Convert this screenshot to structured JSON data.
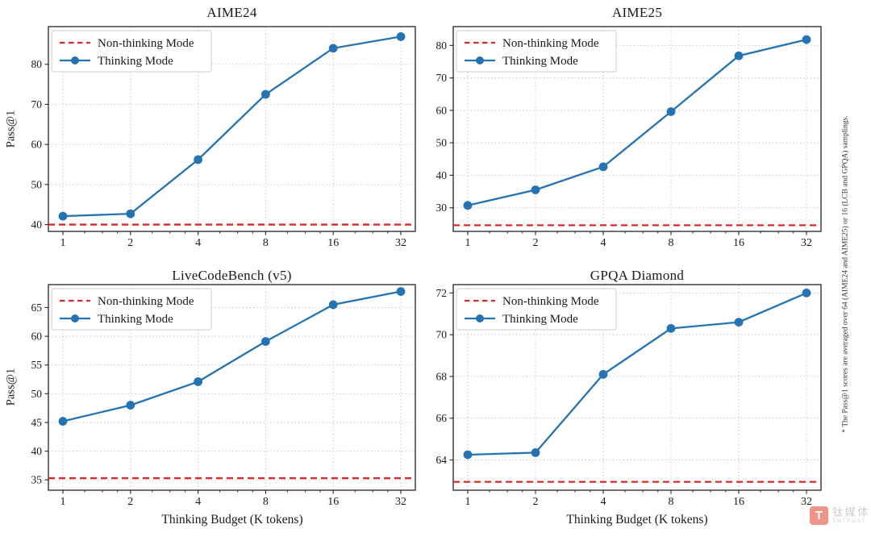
{
  "figure": {
    "background": "#ffffff",
    "footnote": "* The Pass@1 scores are averaged over 64 (AIME24 and AIME25) or 16 (LCB and GPQA) samplings."
  },
  "watermark": {
    "logo_letter": "T",
    "name_cn": "钛媒体",
    "name_en": "TMTPOST",
    "logo_color": "#f0948a",
    "text_color": "#cfcfcf"
  },
  "colors": {
    "thinking_line": "#2573b3",
    "non_thinking_line": "#d62b2e",
    "grid": "#c9c9c9",
    "spine": "#333333",
    "text": "#1a1a1a",
    "legend_border": "#cccccc",
    "legend_bg": "#ffffff"
  },
  "chart_data": [
    {
      "type": "line",
      "title": "AIME24",
      "ylabel": "Pass@1",
      "xlabel": "",
      "x_scale": "log2",
      "x": [
        1,
        2,
        4,
        8,
        16,
        32
      ],
      "x_tick_labels": [
        "1",
        "2",
        "4",
        "8",
        "16",
        "32"
      ],
      "y_ticks": [
        40,
        50,
        60,
        70,
        80
      ],
      "ylim": [
        38.3,
        89.4
      ],
      "grid": true,
      "legend_position": "upper-left",
      "series": [
        {
          "name": "Non-thinking Mode",
          "style": "dashed-hline",
          "value": 40.0
        },
        {
          "name": "Thinking Mode",
          "style": "line-marker",
          "values": [
            42.1,
            42.7,
            56.2,
            72.5,
            84.0,
            86.9
          ]
        }
      ]
    },
    {
      "type": "line",
      "title": "AIME25",
      "ylabel": "",
      "xlabel": "",
      "x_scale": "log2",
      "x": [
        1,
        2,
        4,
        8,
        16,
        32
      ],
      "x_tick_labels": [
        "1",
        "2",
        "4",
        "8",
        "16",
        "32"
      ],
      "y_ticks": [
        30,
        40,
        50,
        60,
        70,
        80
      ],
      "ylim": [
        22.7,
        85.8
      ],
      "grid": true,
      "legend_position": "upper-left",
      "series": [
        {
          "name": "Non-thinking Mode",
          "style": "dashed-hline",
          "value": 24.6
        },
        {
          "name": "Thinking Mode",
          "style": "line-marker",
          "values": [
            30.7,
            35.5,
            42.6,
            59.6,
            76.8,
            81.8
          ]
        }
      ]
    },
    {
      "type": "line",
      "title": "LiveCodeBench (v5)",
      "ylabel": "Pass@1",
      "xlabel": "Thinking Budget (K tokens)",
      "x_scale": "log2",
      "x": [
        1,
        2,
        4,
        8,
        16,
        32
      ],
      "x_tick_labels": [
        "1",
        "2",
        "4",
        "8",
        "16",
        "32"
      ],
      "y_ticks": [
        35,
        40,
        45,
        50,
        55,
        60,
        65
      ],
      "ylim": [
        33.2,
        69.0
      ],
      "grid": true,
      "legend_position": "upper-left",
      "series": [
        {
          "name": "Non-thinking Mode",
          "style": "dashed-hline",
          "value": 35.3
        },
        {
          "name": "Thinking Mode",
          "style": "line-marker",
          "values": [
            45.2,
            48.0,
            52.1,
            59.1,
            65.5,
            67.8
          ]
        }
      ]
    },
    {
      "type": "line",
      "title": "GPQA Diamond",
      "ylabel": "",
      "xlabel": "Thinking Budget (K tokens)",
      "x_scale": "log2",
      "x": [
        1,
        2,
        4,
        8,
        16,
        32
      ],
      "x_tick_labels": [
        "1",
        "2",
        "4",
        "8",
        "16",
        "32"
      ],
      "y_ticks": [
        64,
        66,
        68,
        70,
        72
      ],
      "ylim": [
        62.55,
        72.4
      ],
      "grid": true,
      "legend_position": "upper-left",
      "series": [
        {
          "name": "Non-thinking Mode",
          "style": "dashed-hline",
          "value": 62.95
        },
        {
          "name": "Thinking Mode",
          "style": "line-marker",
          "values": [
            64.25,
            64.35,
            68.1,
            70.3,
            70.6,
            72.0
          ]
        }
      ]
    }
  ]
}
